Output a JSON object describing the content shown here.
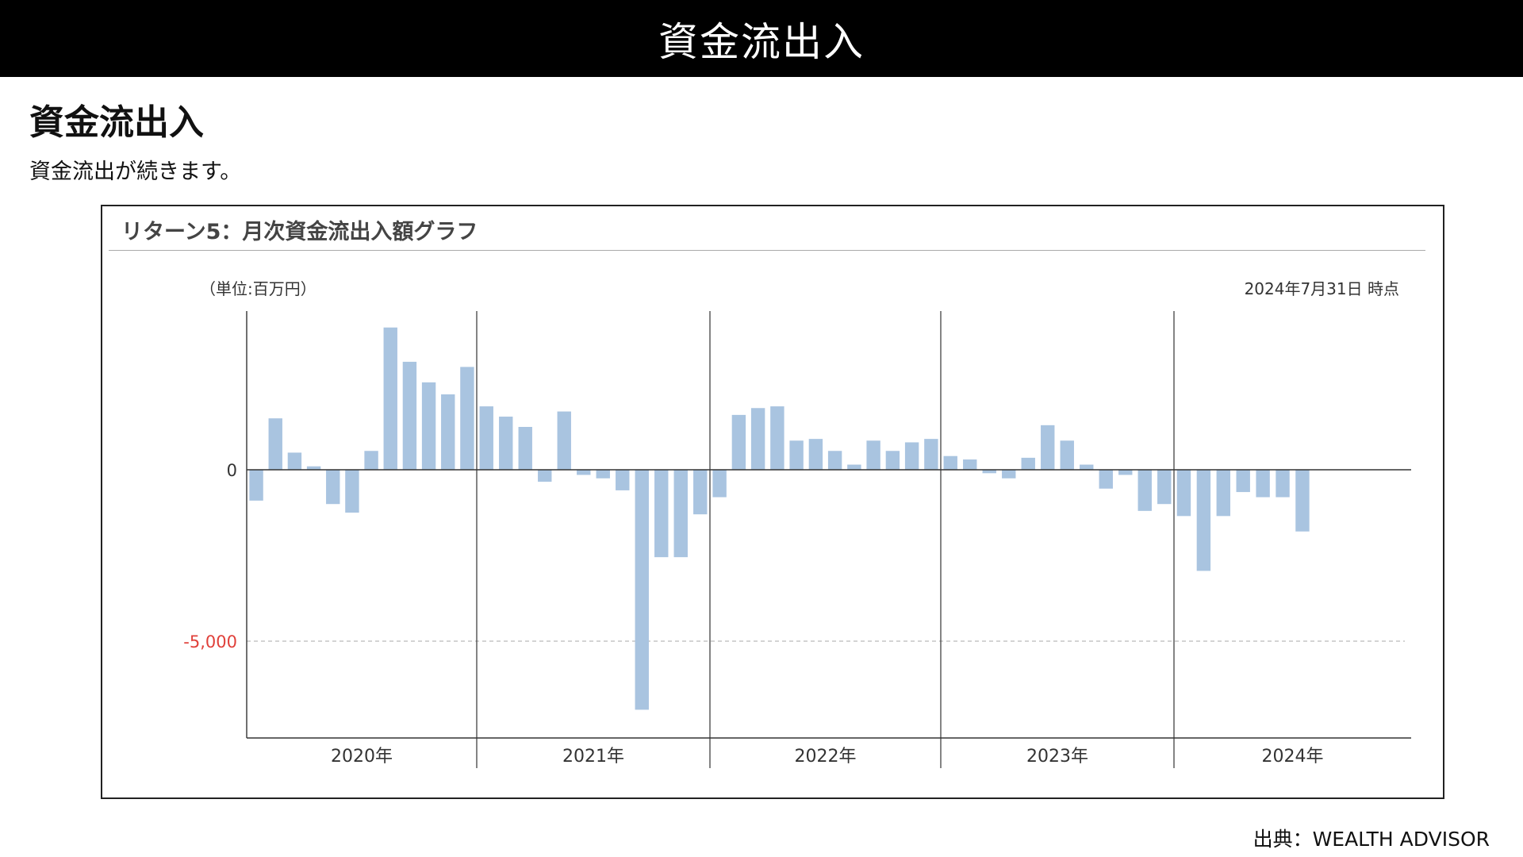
{
  "banner": {
    "title": "資金流出入"
  },
  "page": {
    "heading": "資金流出入",
    "subtitle": "資金流出が続きます。"
  },
  "panel": {
    "title": "リターン5：月次資金流出入額グラフ"
  },
  "source": {
    "text": "出典：WEALTH ADVISOR"
  },
  "chart_data": {
    "type": "bar",
    "unit_label": "（単位:百万円）",
    "as_of_label": "2024年7月31日 時点",
    "ylim": [
      -7500,
      4500
    ],
    "y_ticks": [
      {
        "value": 0,
        "label": "0",
        "color": "#333333"
      },
      {
        "value": -5000,
        "label": "-5,000",
        "color": "#e0403a"
      }
    ],
    "grid": "dashed reference line at -5,000; vertical separators between years",
    "bar_color": "#a9c4e0",
    "year_groups": [
      {
        "label": "2020年",
        "months": 12
      },
      {
        "label": "2021年",
        "months": 12
      },
      {
        "label": "2022年",
        "months": 12
      },
      {
        "label": "2023年",
        "months": 12
      },
      {
        "label": "2024年",
        "months": 12
      }
    ],
    "values": [
      -900,
      1500,
      500,
      100,
      -1000,
      -1250,
      550,
      4150,
      3150,
      2550,
      2200,
      3000,
      1850,
      1550,
      1250,
      -350,
      1700,
      -150,
      -250,
      -600,
      -7000,
      -2550,
      -2550,
      -1300,
      -800,
      1600,
      1800,
      1850,
      850,
      900,
      550,
      150,
      850,
      550,
      800,
      900,
      400,
      300,
      -100,
      -250,
      350,
      1300,
      850,
      150,
      -550,
      -150,
      -1200,
      -1000,
      -1350,
      -2950,
      -1350,
      -650,
      -800,
      -800,
      -1800
    ]
  }
}
